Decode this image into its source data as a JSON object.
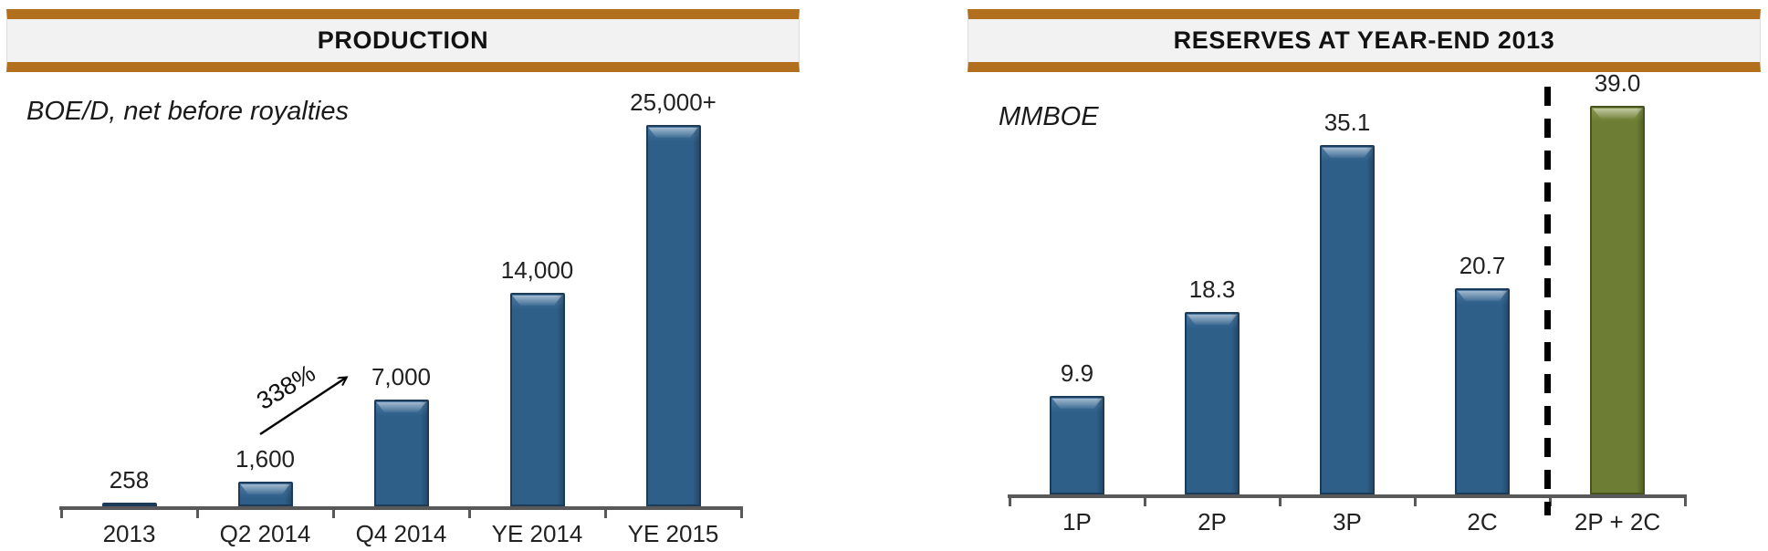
{
  "theme": {
    "accent_bar_color": "#B26F1E",
    "title_band_bg": "#F2F2F2",
    "axis_color": "#595959",
    "blue_bar": "#2E5F88",
    "blue_bar_border": "#1C3B58",
    "blue_bar_highlight": "#4B79A3",
    "green_bar": "#6D7D33",
    "green_bar_border": "#46531F",
    "green_bar_highlight": "#87974B",
    "text_color": "#1A1A1A"
  },
  "chart_data": [
    {
      "type": "bar",
      "title": "PRODUCTION",
      "ylabel": "BOE/D, net before royalties",
      "categories": [
        "2013",
        "Q2 2014",
        "Q4 2014",
        "YE 2014",
        "YE 2015"
      ],
      "values": [
        258,
        1600,
        7000,
        14000,
        25000
      ],
      "value_labels": [
        "258",
        "1,600",
        "7,000",
        "14,000",
        "25,000+"
      ],
      "ylim": [
        0,
        25000
      ],
      "grid": false,
      "legend": "none",
      "bar_color_key": "blue",
      "annotations": [
        {
          "type": "arrow",
          "label": "338%",
          "from_category": "Q2 2014",
          "to_category": "Q4 2014"
        }
      ]
    },
    {
      "type": "bar",
      "title": "RESERVES AT YEAR-END 2013",
      "ylabel": "MMBOE",
      "categories": [
        "1P",
        "2P",
        "3P",
        "2C",
        "2P + 2C"
      ],
      "values": [
        9.9,
        18.3,
        35.1,
        20.7,
        39.0
      ],
      "value_labels": [
        "9.9",
        "18.3",
        "35.1",
        "20.7",
        "39.0"
      ],
      "ylim": [
        0,
        39
      ],
      "grid": false,
      "legend": "none",
      "bar_color_keys": [
        "blue",
        "blue",
        "blue",
        "blue",
        "green"
      ],
      "annotations": [
        {
          "type": "dashed-divider",
          "between": [
            "2C",
            "2P + 2C"
          ]
        }
      ]
    }
  ]
}
